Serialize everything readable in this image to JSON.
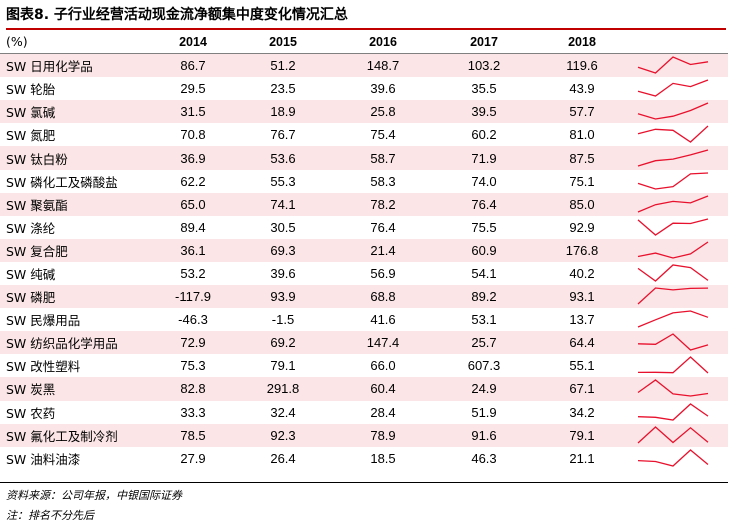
{
  "title": "图表8. 子行业经营活动现金流净额集中度变化情况汇总",
  "table": {
    "unit_header": "(%)",
    "years": [
      "2014",
      "2015",
      "2016",
      "2017",
      "2018"
    ],
    "rows": [
      {
        "name": "SW 日用化学品",
        "values": [
          "86.7",
          "51.2",
          "148.7",
          "103.2",
          "119.6"
        ],
        "series": [
          86.7,
          51.2,
          148.7,
          103.2,
          119.6
        ]
      },
      {
        "name": "SW 轮胎",
        "values": [
          "29.5",
          "23.5",
          "39.6",
          "35.5",
          "43.9"
        ],
        "series": [
          29.5,
          23.5,
          39.6,
          35.5,
          43.9
        ]
      },
      {
        "name": "SW 氯碱",
        "values": [
          "31.5",
          "18.9",
          "25.8",
          "39.5",
          "57.7"
        ],
        "series": [
          31.5,
          18.9,
          25.8,
          39.5,
          57.7
        ]
      },
      {
        "name": "SW 氮肥",
        "values": [
          "70.8",
          "76.7",
          "75.4",
          "60.2",
          "81.0"
        ],
        "series": [
          70.8,
          76.7,
          75.4,
          60.2,
          81.0
        ]
      },
      {
        "name": "SW 钛白粉",
        "values": [
          "36.9",
          "53.6",
          "58.7",
          "71.9",
          "87.5"
        ],
        "series": [
          36.9,
          53.6,
          58.7,
          71.9,
          87.5
        ]
      },
      {
        "name": "SW 磷化工及磷酸盐",
        "values": [
          "62.2",
          "55.3",
          "58.3",
          "74.0",
          "75.1"
        ],
        "series": [
          62.2,
          55.3,
          58.3,
          74.0,
          75.1
        ]
      },
      {
        "name": "SW 聚氨酯",
        "values": [
          "65.0",
          "74.1",
          "78.2",
          "76.4",
          "85.0"
        ],
        "series": [
          65.0,
          74.1,
          78.2,
          76.4,
          85.0
        ]
      },
      {
        "name": "SW 涤纶",
        "values": [
          "89.4",
          "30.5",
          "76.4",
          "75.5",
          "92.9"
        ],
        "series": [
          89.4,
          30.5,
          76.4,
          75.5,
          92.9
        ]
      },
      {
        "name": "SW 复合肥",
        "values": [
          "36.1",
          "69.3",
          "21.4",
          "60.9",
          "176.8"
        ],
        "series": [
          36.1,
          69.3,
          21.4,
          60.9,
          176.8
        ]
      },
      {
        "name": "SW 纯碱",
        "values": [
          "53.2",
          "39.6",
          "56.9",
          "54.1",
          "40.2"
        ],
        "series": [
          53.2,
          39.6,
          56.9,
          54.1,
          40.2
        ]
      },
      {
        "name": "SW 磷肥",
        "values": [
          "-117.9",
          "93.9",
          "68.8",
          "89.2",
          "93.1"
        ],
        "series": [
          -117.9,
          93.9,
          68.8,
          89.2,
          93.1
        ]
      },
      {
        "name": "SW 民爆用品",
        "values": [
          "-46.3",
          "-1.5",
          "41.6",
          "53.1",
          "13.7"
        ],
        "series": [
          -46.3,
          -1.5,
          41.6,
          53.1,
          13.7
        ]
      },
      {
        "name": "SW 纺织品化学用品",
        "values": [
          "72.9",
          "69.2",
          "147.4",
          "25.7",
          "64.4"
        ],
        "series": [
          72.9,
          69.2,
          147.4,
          25.7,
          64.4
        ]
      },
      {
        "name": "SW 改性塑料",
        "values": [
          "75.3",
          "79.1",
          "66.0",
          "607.3",
          "55.1"
        ],
        "series": [
          75.3,
          79.1,
          66.0,
          607.3,
          55.1
        ]
      },
      {
        "name": "SW 炭黑",
        "values": [
          "82.8",
          "291.8",
          "60.4",
          "24.9",
          "67.1"
        ],
        "series": [
          82.8,
          291.8,
          60.4,
          24.9,
          67.1
        ]
      },
      {
        "name": "SW 农药",
        "values": [
          "33.3",
          "32.4",
          "28.4",
          "51.9",
          "34.2"
        ],
        "series": [
          33.3,
          32.4,
          28.4,
          51.9,
          34.2
        ]
      },
      {
        "name": "SW 氟化工及制冷剂",
        "values": [
          "78.5",
          "92.3",
          "78.9",
          "91.6",
          "79.1"
        ],
        "series": [
          78.5,
          92.3,
          78.9,
          91.6,
          79.1
        ]
      },
      {
        "name": "SW 油料油漆",
        "values": [
          "27.9",
          "26.4",
          "18.5",
          "46.3",
          "21.1"
        ],
        "series": [
          27.9,
          26.4,
          18.5,
          46.3,
          21.1
        ]
      }
    ]
  },
  "source_note": "资料来源：公司年报，中银国际证券",
  "footnote": "注：排名不分先后",
  "colors": {
    "title_rule": "#c00000",
    "row_shade": "#fbe5e6",
    "sparkline": "#e8112d"
  }
}
